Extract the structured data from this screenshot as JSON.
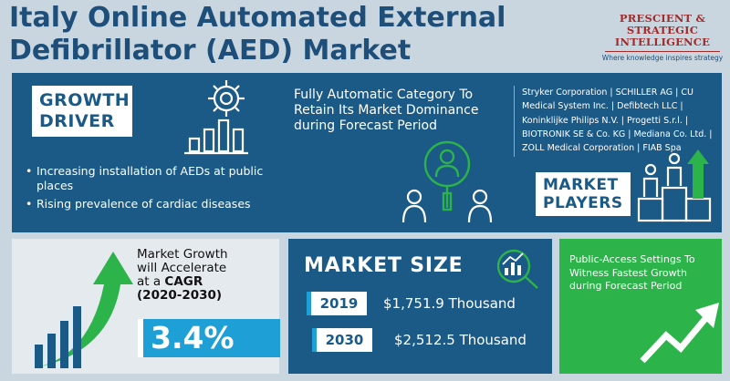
{
  "header": {
    "title": "Italy Online Automated External Defibrillator (AED) Market",
    "logo": {
      "line1": "PRESCIENT & STRATEGIC",
      "line2": "INTELLIGENCE",
      "tagline": "Where knowledge inspires strategy"
    }
  },
  "growth_driver": {
    "heading_line1": "GROWTH",
    "heading_line2": "DRIVER",
    "bullets": [
      "Increasing installation of AEDs at public places",
      "Rising prevalence of cardiac diseases"
    ]
  },
  "category": {
    "text": "Fully Automatic Category To Retain Its Market Dominance during Forecast Period"
  },
  "market_players": {
    "list": "Stryker Corporation | SCHILLER AG | CU Medical System Inc. | Defibtech LLC | Koninklijke Philips N.V. | Progetti S.r.l. | BIOTRONIK SE & Co. KG | Mediana Co. Ltd. | ZOLL Medical Corporation | FIAB Spa",
    "heading_line1": "MARKET",
    "heading_line2": "PLAYERS"
  },
  "growth": {
    "line1": "Market Growth",
    "line2": "will Accelerate",
    "line3_prefix": "at a ",
    "line3_bold": "CAGR",
    "line4": "(2020-2030)",
    "cagr_value": "3.4%"
  },
  "market_size": {
    "heading": "MARKET SIZE",
    "rows": [
      {
        "year": "2019",
        "value": "$1,751.9 Thousand"
      },
      {
        "year": "2030",
        "value": "$2,512.5 Thousand"
      }
    ]
  },
  "segment": {
    "text": "Public-Access Settings To Witness Fastest Growth during Forecast Period"
  },
  "colors": {
    "navy": "#1b5a86",
    "light_bg": "#c9d6df",
    "accent_blue": "#1e9fd6",
    "green": "#2cb34a",
    "logo_red": "#a12a2a"
  }
}
